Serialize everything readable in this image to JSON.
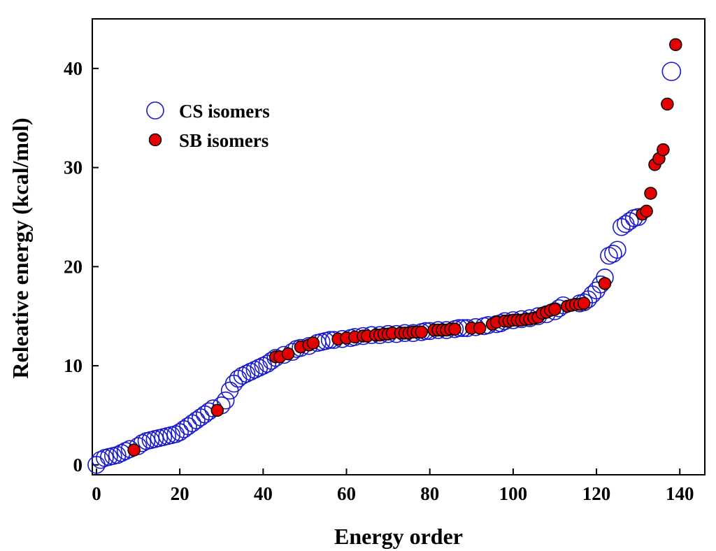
{
  "chart_data": {
    "type": "scatter",
    "title": "",
    "xlabel": "Energy order",
    "ylabel": "Releative energy (kcal/mol)",
    "xlim": [
      -1,
      146
    ],
    "ylim": [
      -1,
      45
    ],
    "x_ticks": [
      0,
      20,
      40,
      60,
      80,
      100,
      120,
      140
    ],
    "y_ticks": [
      0,
      10,
      20,
      30,
      40
    ],
    "grid": false,
    "legend_position": "top-left",
    "series": [
      {
        "name": "CS isomers",
        "marker": "open-circle",
        "color": "#1a1acc",
        "points": [
          [
            0,
            0.0
          ],
          [
            1,
            0.5
          ],
          [
            2,
            0.7
          ],
          [
            3,
            0.8
          ],
          [
            4,
            0.9
          ],
          [
            5,
            1.0
          ],
          [
            6,
            1.2
          ],
          [
            7,
            1.4
          ],
          [
            8,
            1.6
          ],
          [
            10,
            1.9
          ],
          [
            11,
            2.2
          ],
          [
            12,
            2.4
          ],
          [
            13,
            2.5
          ],
          [
            14,
            2.6
          ],
          [
            15,
            2.7
          ],
          [
            16,
            2.8
          ],
          [
            17,
            2.9
          ],
          [
            18,
            3.0
          ],
          [
            19,
            3.1
          ],
          [
            20,
            3.3
          ],
          [
            21,
            3.6
          ],
          [
            22,
            3.9
          ],
          [
            23,
            4.2
          ],
          [
            24,
            4.5
          ],
          [
            25,
            4.8
          ],
          [
            26,
            5.1
          ],
          [
            27,
            5.4
          ],
          [
            28,
            5.7
          ],
          [
            30,
            6.0
          ],
          [
            31,
            6.5
          ],
          [
            32,
            7.5
          ],
          [
            33,
            8.2
          ],
          [
            34,
            8.7
          ],
          [
            35,
            9.0
          ],
          [
            36,
            9.2
          ],
          [
            37,
            9.4
          ],
          [
            38,
            9.6
          ],
          [
            39,
            9.8
          ],
          [
            40,
            10.0
          ],
          [
            41,
            10.2
          ],
          [
            42,
            10.5
          ],
          [
            43,
            10.8
          ],
          [
            45,
            11.1
          ],
          [
            47,
            11.4
          ],
          [
            48,
            11.7
          ],
          [
            49,
            11.8
          ],
          [
            51,
            12.0
          ],
          [
            53,
            12.3
          ],
          [
            54,
            12.4
          ],
          [
            55,
            12.5
          ],
          [
            56,
            12.6
          ],
          [
            57,
            12.6
          ],
          [
            59,
            12.7
          ],
          [
            61,
            12.8
          ],
          [
            62,
            12.9
          ],
          [
            64,
            13.0
          ],
          [
            66,
            13.1
          ],
          [
            68,
            13.1
          ],
          [
            70,
            13.2
          ],
          [
            72,
            13.2
          ],
          [
            74,
            13.3
          ],
          [
            76,
            13.3
          ],
          [
            78,
            13.4
          ],
          [
            79,
            13.5
          ],
          [
            80,
            13.5
          ],
          [
            82,
            13.6
          ],
          [
            84,
            13.6
          ],
          [
            86,
            13.7
          ],
          [
            87,
            13.8
          ],
          [
            88,
            13.8
          ],
          [
            89,
            13.8
          ],
          [
            91,
            13.9
          ],
          [
            93,
            14.0
          ],
          [
            94,
            14.1
          ],
          [
            96,
            14.2
          ],
          [
            97,
            14.3
          ],
          [
            98,
            14.5
          ],
          [
            100,
            14.6
          ],
          [
            102,
            14.7
          ],
          [
            104,
            14.8
          ],
          [
            106,
            15.0
          ],
          [
            108,
            15.2
          ],
          [
            110,
            15.5
          ],
          [
            111,
            15.8
          ],
          [
            112,
            16.1
          ],
          [
            116,
            16.3
          ],
          [
            117,
            16.4
          ],
          [
            118,
            16.7
          ],
          [
            119,
            17.2
          ],
          [
            120,
            17.6
          ],
          [
            121,
            18.2
          ],
          [
            122,
            18.9
          ],
          [
            123,
            21.1
          ],
          [
            124,
            21.3
          ],
          [
            125,
            21.7
          ],
          [
            126,
            24.0
          ],
          [
            127,
            24.3
          ],
          [
            128,
            24.6
          ],
          [
            129,
            24.9
          ],
          [
            130,
            25.0
          ],
          [
            138,
            39.7
          ]
        ]
      },
      {
        "name": "SB isomers",
        "marker": "filled-circle",
        "color": "#e60000",
        "edge_color": "#000000",
        "points": [
          [
            9,
            1.5
          ],
          [
            29,
            5.5
          ],
          [
            43,
            10.9
          ],
          [
            44,
            10.9
          ],
          [
            46,
            11.2
          ],
          [
            49,
            11.9
          ],
          [
            51,
            12.1
          ],
          [
            52,
            12.3
          ],
          [
            58,
            12.7
          ],
          [
            60,
            12.8
          ],
          [
            62,
            12.9
          ],
          [
            64,
            13.0
          ],
          [
            65,
            13.0
          ],
          [
            67,
            13.1
          ],
          [
            68,
            13.1
          ],
          [
            69,
            13.2
          ],
          [
            70,
            13.2
          ],
          [
            71,
            13.3
          ],
          [
            73,
            13.3
          ],
          [
            74,
            13.3
          ],
          [
            75,
            13.3
          ],
          [
            76,
            13.4
          ],
          [
            77,
            13.4
          ],
          [
            78,
            13.4
          ],
          [
            81,
            13.6
          ],
          [
            82,
            13.6
          ],
          [
            83,
            13.6
          ],
          [
            84,
            13.6
          ],
          [
            85,
            13.7
          ],
          [
            86,
            13.7
          ],
          [
            90,
            13.8
          ],
          [
            92,
            13.8
          ],
          [
            95,
            14.2
          ],
          [
            96,
            14.4
          ],
          [
            98,
            14.5
          ],
          [
            99,
            14.5
          ],
          [
            100,
            14.6
          ],
          [
            101,
            14.6
          ],
          [
            102,
            14.6
          ],
          [
            103,
            14.7
          ],
          [
            104,
            14.7
          ],
          [
            105,
            14.8
          ],
          [
            106,
            14.9
          ],
          [
            107,
            15.3
          ],
          [
            108,
            15.4
          ],
          [
            109,
            15.6
          ],
          [
            110,
            15.7
          ],
          [
            113,
            16.0
          ],
          [
            114,
            16.1
          ],
          [
            115,
            16.2
          ],
          [
            116,
            16.2
          ],
          [
            117,
            16.3
          ],
          [
            122,
            18.3
          ],
          [
            131,
            25.3
          ],
          [
            132,
            25.6
          ],
          [
            133,
            27.4
          ],
          [
            134,
            30.3
          ],
          [
            135,
            30.9
          ],
          [
            136,
            31.8
          ],
          [
            137,
            36.4
          ],
          [
            139,
            42.4
          ]
        ]
      }
    ]
  }
}
